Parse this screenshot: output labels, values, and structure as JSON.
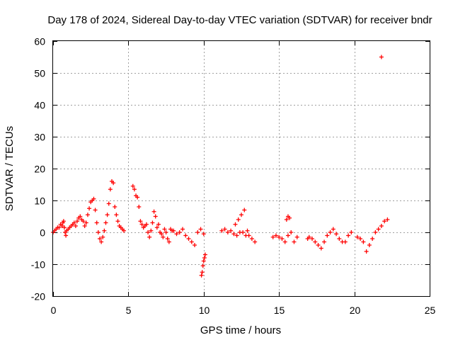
{
  "chart_data": {
    "type": "scatter",
    "title": "Day 178 of 2024, Sidereal Day-to-day VTEC variation (SDTVAR) for receiver bndr",
    "xlabel": "GPS time / hours",
    "ylabel": "SDTVAR / TECUs",
    "xlim": [
      0,
      25
    ],
    "ylim": [
      -20,
      60
    ],
    "xticks": [
      0,
      5,
      10,
      15,
      20,
      25
    ],
    "yticks": [
      -20,
      -10,
      0,
      10,
      20,
      30,
      40,
      50,
      60
    ],
    "xtick_labels": [
      "0",
      "5",
      "10",
      "15",
      "20",
      "25"
    ],
    "ytick_labels": [
      "-20",
      "-10",
      "0",
      "10",
      "20",
      "30",
      "40",
      "50",
      "60"
    ],
    "grid": true,
    "marker": "+",
    "series": [
      {
        "name": "SDTVAR",
        "color": "#ff0000",
        "x": [
          0.0,
          0.1,
          0.2,
          0.3,
          0.4,
          0.5,
          0.6,
          0.65,
          0.7,
          0.75,
          0.8,
          0.85,
          0.9,
          1.0,
          1.1,
          1.2,
          1.3,
          1.4,
          1.5,
          1.6,
          1.7,
          1.8,
          1.9,
          2.0,
          2.1,
          2.2,
          2.3,
          2.4,
          2.5,
          2.6,
          2.7,
          2.8,
          2.9,
          3.0,
          3.1,
          3.2,
          3.3,
          3.4,
          3.5,
          3.6,
          3.7,
          3.8,
          3.9,
          4.0,
          4.1,
          4.2,
          4.3,
          4.4,
          4.5,
          4.6,
          4.7,
          5.3,
          5.4,
          5.5,
          5.6,
          5.7,
          5.8,
          5.9,
          6.0,
          6.1,
          6.2,
          6.3,
          6.4,
          6.5,
          6.6,
          6.7,
          6.8,
          6.9,
          7.0,
          7.1,
          7.2,
          7.3,
          7.4,
          7.5,
          7.6,
          7.7,
          7.8,
          7.9,
          8.0,
          8.2,
          8.4,
          8.6,
          8.8,
          9.0,
          9.2,
          9.4,
          9.6,
          9.8,
          10.0,
          9.85,
          9.9,
          9.95,
          10.0,
          10.05,
          10.1,
          11.2,
          11.4,
          11.6,
          11.8,
          12.0,
          12.1,
          12.2,
          12.3,
          12.4,
          12.5,
          12.6,
          12.7,
          12.8,
          12.9,
          13.0,
          13.2,
          13.4,
          14.6,
          14.8,
          15.0,
          15.2,
          15.4,
          15.6,
          15.8,
          16.0,
          16.2,
          15.5,
          15.6,
          15.7,
          16.9,
          17.0,
          17.2,
          17.4,
          17.6,
          17.8,
          18.0,
          18.2,
          18.4,
          18.6,
          18.8,
          19.0,
          19.2,
          19.4,
          19.6,
          19.8,
          20.2,
          20.4,
          20.6,
          20.8,
          21.0,
          21.2,
          21.4,
          21.6,
          21.8,
          22.0,
          22.2,
          21.8
        ],
        "y": [
          0.0,
          0.5,
          1.0,
          1.5,
          1.5,
          2.5,
          2.0,
          3.0,
          3.5,
          1.5,
          0.0,
          -1.0,
          0.5,
          1.0,
          1.5,
          2.0,
          2.5,
          3.0,
          2.0,
          3.5,
          4.5,
          5.0,
          4.0,
          3.5,
          2.0,
          3.0,
          5.5,
          7.5,
          9.5,
          10.0,
          10.5,
          7.0,
          3.0,
          0.0,
          -2.0,
          -3.0,
          -1.5,
          0.5,
          3.0,
          5.5,
          9.0,
          13.5,
          16.0,
          15.5,
          8.0,
          5.5,
          3.5,
          2.0,
          1.5,
          1.0,
          0.5,
          14.5,
          13.5,
          11.5,
          11.0,
          8.0,
          3.5,
          2.5,
          1.5,
          2.0,
          2.5,
          0.0,
          -1.5,
          0.5,
          3.0,
          6.5,
          5.0,
          1.5,
          2.5,
          0.0,
          -0.5,
          -1.5,
          1.0,
          0.0,
          -2.0,
          -3.0,
          1.0,
          0.5,
          0.5,
          -0.5,
          0.0,
          1.0,
          -1.0,
          -2.0,
          -3.0,
          -4.0,
          0.0,
          1.0,
          -0.5,
          -13.5,
          -12.5,
          -10.5,
          -9.0,
          -8.0,
          -7.0,
          0.5,
          1.0,
          0.0,
          0.5,
          -0.5,
          2.5,
          -1.0,
          4.0,
          0.0,
          5.5,
          0.0,
          7.0,
          -1.0,
          0.5,
          -1.0,
          -2.0,
          -3.0,
          -1.5,
          -1.0,
          -1.5,
          -2.0,
          -3.0,
          -1.0,
          0.0,
          -3.0,
          -1.5,
          4.0,
          5.0,
          4.5,
          -2.0,
          -1.5,
          -2.0,
          -3.0,
          -4.0,
          -5.0,
          -3.0,
          -1.0,
          0.0,
          1.0,
          -0.5,
          -2.0,
          -3.0,
          -3.0,
          -1.0,
          0.0,
          -1.5,
          -2.0,
          -3.0,
          -6.0,
          -4.0,
          -2.0,
          0.0,
          1.0,
          2.0,
          3.5,
          4.0,
          55.0
        ]
      }
    ]
  }
}
